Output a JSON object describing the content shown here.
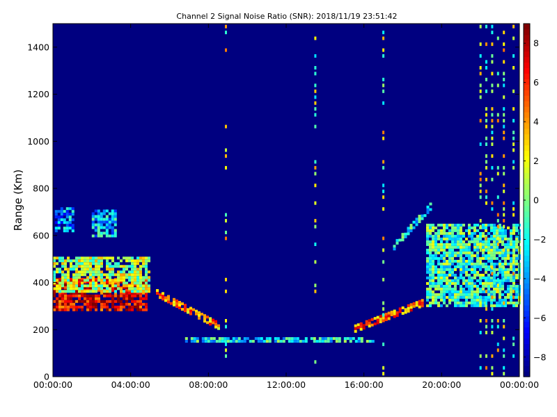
{
  "chart_data": {
    "type": "heatmap",
    "title": "Channel 2 Signal Noise Ratio (SNR): 2018/11/19 23:51:42",
    "xlabel": "",
    "ylabel": "Range (Km)",
    "x_ticks": [
      "00:00:00",
      "04:00:00",
      "08:00:00",
      "12:00:00",
      "16:00:00",
      "20:00:00",
      "00:00:00"
    ],
    "x_tick_hours": [
      0,
      4,
      8,
      12,
      16,
      20,
      24
    ],
    "xlim_hours": [
      0,
      24
    ],
    "y_ticks": [
      0,
      200,
      400,
      600,
      800,
      1000,
      1200,
      1400
    ],
    "ylim": [
      0,
      1500
    ],
    "colorbar": {
      "ticks": [
        8,
        6,
        4,
        2,
        0,
        -2,
        -4,
        -6,
        -8
      ],
      "range": [
        -9,
        9
      ],
      "colormap": "jet"
    },
    "background_snr": -9,
    "features": [
      {
        "name": "morning-echo-core",
        "t0": 0.0,
        "t1": 4.8,
        "r0": 280,
        "r1": 420,
        "snr": 7
      },
      {
        "name": "morning-echo-upper",
        "t0": 0.0,
        "t1": 4.9,
        "r0": 360,
        "r1": 510,
        "snr": 1
      },
      {
        "name": "morning-upper-patch",
        "t0": 0.1,
        "t1": 1.0,
        "r0": 620,
        "r1": 720,
        "snr": -4
      },
      {
        "name": "morning-upper-patch-2",
        "t0": 2.0,
        "t1": 3.2,
        "r0": 600,
        "r1": 710,
        "snr": -3
      },
      {
        "name": "descending-trace",
        "t0": 5.3,
        "t1": 8.5,
        "r0": 220,
        "r1": 360,
        "snr": 4
      },
      {
        "name": "midday-layer",
        "t0": 6.8,
        "t1": 16.5,
        "r0": 148,
        "r1": 168,
        "snr": -2
      },
      {
        "name": "ascending-trace",
        "t0": 15.5,
        "t1": 19.0,
        "r0": 210,
        "r1": 320,
        "snr": 5
      },
      {
        "name": "evening-spread-echo",
        "t0": 19.2,
        "t1": 24.0,
        "r0": 300,
        "r1": 650,
        "snr": -1
      },
      {
        "name": "evening-rising-trace",
        "t0": 17.5,
        "t1": 19.5,
        "r0": 560,
        "r1": 740,
        "snr": -2
      }
    ],
    "interference_columns_hours": [
      8.9,
      13.5,
      17.0,
      22.0,
      22.3,
      22.6,
      22.9,
      23.2,
      23.7
    ],
    "interference_column_snr": 1
  }
}
